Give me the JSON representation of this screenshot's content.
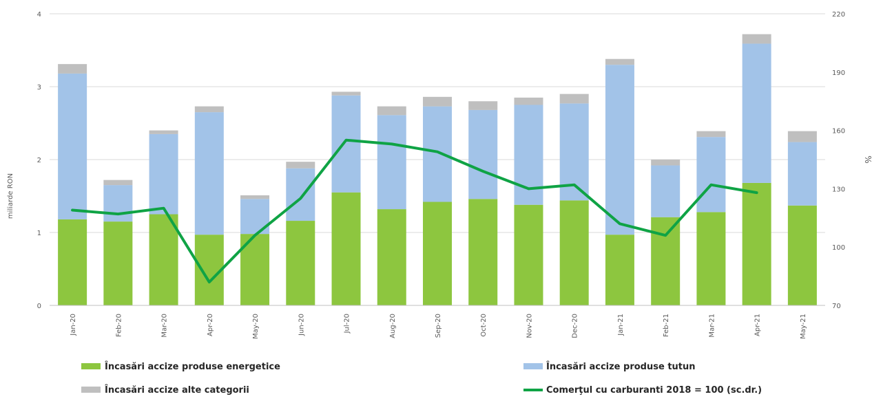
{
  "chart_data": {
    "type": "bar",
    "stacked": true,
    "categories": [
      "Jan-20",
      "Feb-20",
      "Mar-20",
      "Apr-20",
      "May-20",
      "Jun-20",
      "Jul-20",
      "Aug-20",
      "Sep-20",
      "Oct-20",
      "Nov-20",
      "Dec-20",
      "Jan-21",
      "Feb-21",
      "Mar-21",
      "Apr-21",
      "May-21"
    ],
    "series": [
      {
        "name": "Încasări accize produse energetice",
        "kind": "bar",
        "color": "#8DC63F",
        "values": [
          1.18,
          1.15,
          1.25,
          0.97,
          0.98,
          1.16,
          1.55,
          1.32,
          1.42,
          1.46,
          1.38,
          1.44,
          0.97,
          1.21,
          1.28,
          1.68,
          1.37
        ]
      },
      {
        "name": "Încasări accize produse tutun",
        "kind": "bar",
        "color": "#A2C3E8",
        "values": [
          2.0,
          0.5,
          1.1,
          1.68,
          0.48,
          0.72,
          1.33,
          1.29,
          1.31,
          1.22,
          1.37,
          1.33,
          2.33,
          0.71,
          1.03,
          1.91,
          0.87
        ]
      },
      {
        "name": "Încasări accize alte categorii",
        "kind": "bar",
        "color": "#BFBFBF",
        "values": [
          0.13,
          0.07,
          0.05,
          0.08,
          0.05,
          0.09,
          0.05,
          0.12,
          0.13,
          0.12,
          0.1,
          0.13,
          0.08,
          0.08,
          0.08,
          0.13,
          0.15
        ]
      },
      {
        "name": "Comerţul cu carburanti 2018 = 100 (sc.dr.)",
        "kind": "line",
        "axis": "right",
        "color": "#0FA345",
        "values": [
          119,
          117,
          120,
          82,
          106,
          125,
          155,
          153,
          149,
          139,
          130,
          132,
          112,
          106,
          132,
          128,
          null
        ]
      }
    ],
    "ylabel": "miliarde RON",
    "ylabel_right": "%",
    "ylim": [
      0,
      4
    ],
    "y_ticks": [
      "0",
      "1",
      "2",
      "3",
      "4"
    ],
    "ylim_right": [
      70,
      220
    ],
    "y_right_ticks": [
      "70",
      "100",
      "130",
      "160",
      "190",
      "220"
    ],
    "grid": true,
    "legend_position": "bottom"
  }
}
